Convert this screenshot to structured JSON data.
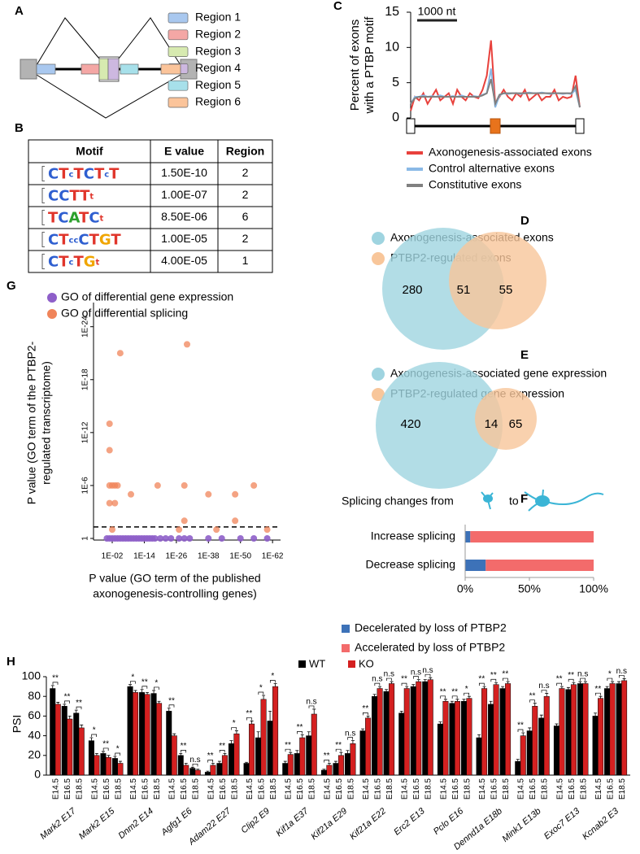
{
  "panel_labels": [
    "A",
    "B",
    "C",
    "D",
    "E",
    "F",
    "G",
    "H"
  ],
  "diagram": {
    "regions": [
      {
        "name": "Region 1",
        "color": "#a9c8ef"
      },
      {
        "name": "Region 2",
        "color": "#f4a7a5"
      },
      {
        "name": "Region 3",
        "color": "#d7eab0"
      },
      {
        "name": "Region 4",
        "color": "#cdb8e0"
      },
      {
        "name": "Region 5",
        "color": "#a7e0ea"
      },
      {
        "name": "Region 6",
        "color": "#fbc49a"
      }
    ]
  },
  "table": {
    "header": [
      "Motif",
      "E value",
      "Region"
    ],
    "rows": [
      [
        "CTcTCTcT",
        "1.50E-10",
        2
      ],
      [
        "CCTTt",
        "1.00E-07",
        2
      ],
      [
        "TCATCt",
        "8.50E-06",
        6
      ],
      [
        "CTccCTGT",
        "1.00E-05",
        2
      ],
      [
        "CTcTGt",
        "4.00E-05",
        1
      ]
    ]
  },
  "chart_data": [
    {
      "type": "line",
      "ylabel": [
        "Percent of exons",
        "with a PTBP motif"
      ],
      "scale_label": "1000 nt",
      "ylim": [
        0,
        15
      ],
      "yticks": [
        0,
        5,
        10,
        15
      ],
      "series": [
        {
          "name": "Axonogenesis-associated exons",
          "color": "#e8413c",
          "values": [
            1.0,
            3.0,
            2.5,
            3.5,
            2.0,
            3.0,
            4.0,
            2.5,
            3.0,
            3.5,
            2.0,
            4.0,
            3.0,
            2.5,
            3.5,
            3.0,
            2.8,
            4.0,
            6.0,
            11.0,
            2.0,
            3.0,
            4.0,
            3.0,
            2.5,
            3.5,
            3.0,
            4.0,
            2.5,
            3.0,
            3.5,
            2.5,
            3.0,
            3.0,
            4.0,
            2.5,
            3.0,
            2.8,
            3.0,
            6.0,
            1.5
          ]
        },
        {
          "name": "Control alternative exons",
          "color": "#8ab9e6",
          "values": [
            2,
            3,
            3,
            3.2,
            3,
            3.1,
            3,
            3.2,
            3,
            3,
            3.1,
            3,
            3.2,
            3,
            3,
            3.1,
            3,
            3.3,
            3.5,
            7,
            1.5,
            3.2,
            3.5,
            3.4,
            3.5,
            3.5,
            3.4,
            3.5,
            3.6,
            3.5,
            3.5,
            3.6,
            3.5,
            3.4,
            3.5,
            3.5,
            3.4,
            3.5,
            3.4,
            4,
            1.5
          ]
        },
        {
          "name": "Constitutive exons",
          "color": "#808080",
          "values": [
            2,
            2.8,
            3,
            3,
            3,
            3,
            3,
            3,
            3,
            3,
            3,
            3,
            3,
            3,
            3,
            3,
            3,
            3.2,
            3.5,
            5.5,
            2,
            3.3,
            3.5,
            3.5,
            3.5,
            3.5,
            3.5,
            3.5,
            3.5,
            3.5,
            3.5,
            3.5,
            3.5,
            3.5,
            3.5,
            3.5,
            3.5,
            3.5,
            3.5,
            4.5,
            1.5
          ]
        }
      ]
    },
    {
      "type": "venn",
      "sets": [
        {
          "name": "Axonogenesis-associated exons",
          "color": "#9fd4e0"
        },
        {
          "name": "PTBP2-regulated exons",
          "color": "#f8c69a"
        }
      ],
      "values": [
        280,
        51,
        55
      ]
    },
    {
      "type": "venn",
      "sets": [
        {
          "name": "Axonogenesis-associated gene expression",
          "color": "#9fd4e0"
        },
        {
          "name": "PTBP2-regulated gene expression",
          "color": "#f8c69a"
        }
      ],
      "values": [
        420,
        14,
        65
      ]
    },
    {
      "type": "stacked_bar",
      "title_parts": [
        "Splicing changes from",
        "to"
      ],
      "categories": [
        "Increase splicing",
        "Decrease splicing"
      ],
      "xlim": [
        0,
        100
      ],
      "xticks": [
        {
          "value": 0,
          "label": "0%"
        },
        {
          "value": 50,
          "label": "50%"
        },
        {
          "value": 100,
          "label": "100%"
        }
      ],
      "series": [
        {
          "name": "Decelerated by loss of PTBP2",
          "color": "#3d72b8",
          "values": [
            4,
            16
          ]
        },
        {
          "name": "Accelerated by loss of PTBP2",
          "color": "#f36b6b",
          "values": [
            96,
            84
          ]
        }
      ]
    },
    {
      "type": "scatter",
      "log_scale": true,
      "ylabel": [
        "P value (GO term of the PTBP2-",
        "regulated transcriptome)"
      ],
      "xlabel": [
        "P value (GO term of the published",
        "axonogenesis-controlling genes)"
      ],
      "xlim": [
        100000,
        1e-65
      ],
      "ylim": [
        1,
        1e-26
      ],
      "threshold": 0.05,
      "xticks": [
        {
          "value": 0.01,
          "label": "1E-02"
        },
        {
          "value": 1e-14,
          "label": "1E-14"
        },
        {
          "value": 1e-26,
          "label": "1E-26"
        },
        {
          "value": 1e-38,
          "label": "1E-38"
        },
        {
          "value": 1e-50,
          "label": "1E-50"
        },
        {
          "value": 1e-62,
          "label": "1E-62"
        }
      ],
      "yticks": [
        1,
        {
          "value": 1e-06,
          "label": "1E-6"
        },
        {
          "value": 1e-12,
          "label": "1E-12"
        },
        {
          "value": 1e-18,
          "label": "1E-18"
        },
        {
          "value": 1e-24,
          "label": "1E-24"
        }
      ],
      "series": [
        {
          "name": "GO of differential gene expression",
          "color": "#8e5fc9",
          "x": [
            1,
            0.1,
            0.01,
            0.001,
            0.0001,
            1e-05,
            1e-06,
            1e-07,
            1e-08,
            1e-09,
            1e-10,
            1e-11,
            1e-12,
            1e-13,
            1e-14,
            1e-15,
            1e-16,
            1e-17,
            1e-18,
            1e-20,
            1e-22,
            1e-24,
            1e-27,
            1e-29,
            1e-31,
            1e-38,
            1e-43,
            1e-50,
            1e-55,
            1e-60
          ],
          "y": [
            1,
            1,
            1,
            1,
            1,
            1,
            1,
            1,
            1,
            1,
            1,
            1,
            1,
            1,
            1,
            1,
            1,
            1,
            1,
            1,
            1,
            1,
            1,
            1,
            1,
            1,
            1,
            1,
            1,
            1
          ]
        },
        {
          "name": "GO of differential splicing",
          "color": "#f0845a",
          "x": [
            0.1,
            0.1,
            0.1,
            0.1,
            0.01,
            0.01,
            0.001,
            0.0001,
            0.001,
            1e-05,
            1e-09,
            1e-19,
            1e-27,
            1e-29,
            1e-29,
            1e-30,
            1e-38,
            1e-48,
            1e-48,
            1e-55,
            1e-60,
            1e-41
          ],
          "y": [
            1e-13,
            1e-10,
            1e-06,
            0.0001,
            0.1,
            1e-06,
            1e-06,
            1e-06,
            0.0001,
            1e-21,
            1e-05,
            1e-06,
            0.1,
            0.01,
            1e-06,
            1e-22,
            1e-05,
            1e-05,
            0.01,
            1e-06,
            0.1,
            0.1
          ]
        }
      ]
    },
    {
      "type": "bar",
      "ylabel": "PSI",
      "ylim": [
        0,
        100
      ],
      "yticks": [
        0,
        20,
        40,
        60,
        80,
        100
      ],
      "categories": [
        "Mark2 E17",
        "Mark2 E15",
        "Dnm2 E14",
        "Agfg1 E6",
        "Adam22 E27",
        "Clip2 E9",
        "Kif1a E37",
        "Kif21a E29",
        "Kif21a E22",
        "Erc2 E13",
        "Pclo E16",
        "Dennd1a E18b",
        "Mink1 E13b",
        "Exoc7 E13",
        "Kcnab2 E3"
      ],
      "subcategories": [
        "E14.5",
        "E16.5",
        "E18.5"
      ],
      "series": [
        {
          "name": "WT",
          "color": "#000000",
          "values": [
            [
              88,
              70,
              63
            ],
            [
              35,
              22,
              17
            ],
            [
              90,
              84,
              83
            ],
            [
              65,
              20,
              7
            ],
            [
              3,
              12,
              32
            ],
            [
              12,
              38,
              55
            ],
            [
              12,
              22,
              40
            ],
            [
              5,
              12,
              22
            ],
            [
              45,
              80,
              85
            ],
            [
              63,
              90,
              95
            ],
            [
              52,
              73,
              75
            ],
            [
              38,
              72,
              88
            ],
            [
              14,
              45,
              58
            ],
            [
              50,
              87,
              93
            ],
            [
              60,
              88,
              93
            ]
          ],
          "errors": [
            [
              3,
              2,
              3
            ],
            [
              3,
              2,
              2
            ],
            [
              2,
              3,
              3
            ],
            [
              3,
              2,
              1
            ],
            [
              1,
              2,
              3
            ],
            [
              1,
              6,
              10
            ],
            [
              2,
              3,
              4
            ],
            [
              1,
              2,
              3
            ],
            [
              2,
              2,
              2
            ],
            [
              2,
              2,
              2
            ],
            [
              2,
              2,
              2
            ],
            [
              3,
              3,
              2
            ],
            [
              2,
              3,
              3
            ],
            [
              2,
              2,
              2
            ],
            [
              3,
              2,
              2
            ]
          ]
        },
        {
          "name": "KO",
          "color": "#d42020",
          "values": [
            [
              72,
              57,
              48
            ],
            [
              20,
              18,
              12
            ],
            [
              84,
              82,
              73
            ],
            [
              40,
              10,
              5
            ],
            [
              10,
              20,
              42
            ],
            [
              52,
              77,
              90
            ],
            [
              21,
              38,
              62
            ],
            [
              10,
              20,
              32
            ],
            [
              58,
              88,
              93
            ],
            [
              88,
              95,
              97
            ],
            [
              75,
              75,
              78
            ],
            [
              88,
              92,
              93
            ],
            [
              40,
              70,
              80
            ],
            [
              88,
              92,
              93
            ],
            [
              78,
              93,
              96
            ]
          ],
          "errors": [
            [
              2,
              3,
              3
            ],
            [
              2,
              2,
              2
            ],
            [
              2,
              2,
              2
            ],
            [
              2,
              2,
              1
            ],
            [
              2,
              2,
              3
            ],
            [
              3,
              4,
              3
            ],
            [
              2,
              3,
              5
            ],
            [
              2,
              3,
              3
            ],
            [
              2,
              2,
              2
            ],
            [
              2,
              2,
              2
            ],
            [
              2,
              2,
              2
            ],
            [
              2,
              2,
              2
            ],
            [
              3,
              3,
              3
            ],
            [
              2,
              2,
              2
            ],
            [
              2,
              2,
              2
            ]
          ]
        }
      ],
      "significance": [
        [
          "**",
          "**",
          "**"
        ],
        [
          "*",
          "**",
          "*"
        ],
        [
          "*",
          "**",
          "*"
        ],
        [
          "**",
          "**",
          "n.s"
        ],
        [
          "**",
          "**",
          "*"
        ],
        [
          "**",
          "*",
          "*"
        ],
        [
          "**",
          "**",
          "n.s"
        ],
        [
          "**",
          "**",
          "n.s"
        ],
        [
          "**",
          "n.s",
          "n.s"
        ],
        [
          "**",
          "n.s",
          "n.s"
        ],
        [
          "**",
          "**",
          "*"
        ],
        [
          "**",
          "**",
          "**"
        ],
        [
          "**",
          "**",
          "n.s"
        ],
        [
          "**",
          "**",
          "n.s"
        ],
        [
          "**",
          "*",
          "n.s"
        ]
      ]
    }
  ]
}
